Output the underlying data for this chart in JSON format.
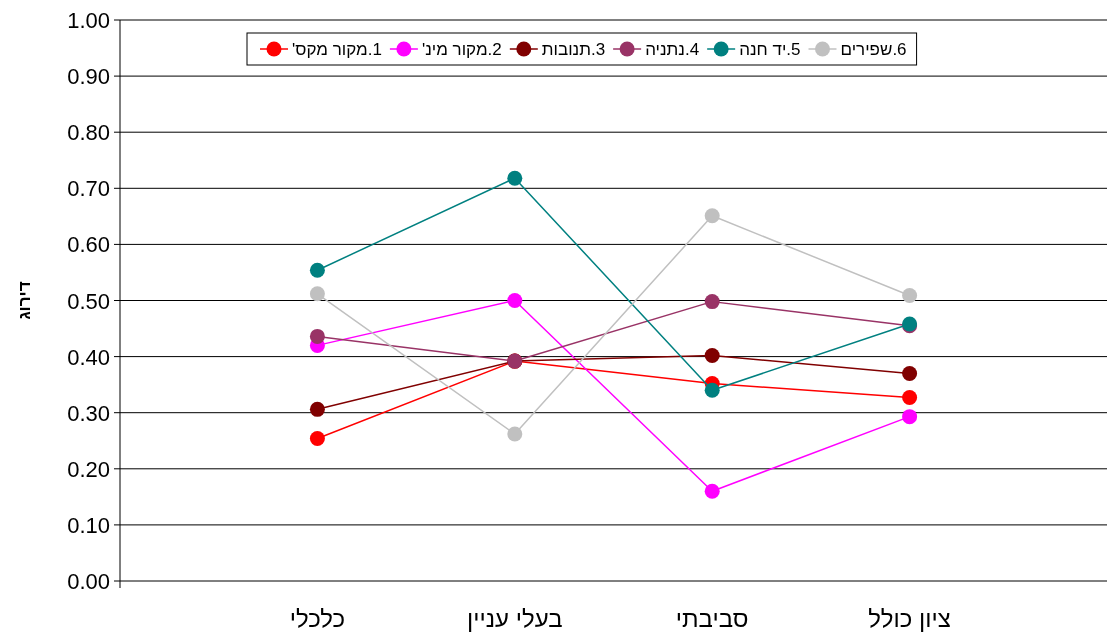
{
  "chart_data": {
    "type": "line",
    "ylabel": "דירוג",
    "categories": [
      "כלכלי",
      "בעלי עניין",
      "סביבתי",
      "ציון כולל"
    ],
    "ylim": [
      0,
      1
    ],
    "yticks": [
      {
        "value": 0,
        "label": "0.00"
      },
      {
        "value": 0.1,
        "label": "0.10"
      },
      {
        "value": 0.2,
        "label": "0.20"
      },
      {
        "value": 0.3,
        "label": "0.30"
      },
      {
        "value": 0.4,
        "label": "0.40"
      },
      {
        "value": 0.5,
        "label": "0.50"
      },
      {
        "value": 0.6,
        "label": "0.60"
      },
      {
        "value": 0.7,
        "label": "0.70"
      },
      {
        "value": 0.8,
        "label": "0.80"
      },
      {
        "value": 0.9,
        "label": "0.90"
      },
      {
        "value": 1,
        "label": "1.00"
      }
    ],
    "grid": "y",
    "legend": "top",
    "marker": "circle",
    "line_style": "solid",
    "series": [
      {
        "name": "1.מקור מקס'",
        "color": "#ff0000",
        "values": [
          0.254,
          0.392,
          0.352,
          0.327
        ]
      },
      {
        "name": "2.מקור מינ'",
        "color": "#ff00ff",
        "values": [
          0.42,
          0.5,
          0.16,
          0.293
        ]
      },
      {
        "name": "3.תנובות",
        "color": "#800000",
        "values": [
          0.306,
          0.392,
          0.402,
          0.37
        ]
      },
      {
        "name": "4.נתניה",
        "color": "#993366",
        "values": [
          0.436,
          0.392,
          0.498,
          0.455
        ]
      },
      {
        "name": "5.יד חנה",
        "color": "#008080",
        "values": [
          0.554,
          0.718,
          0.34,
          0.458
        ]
      },
      {
        "name": "6.שפירים",
        "color": "#c0c0c0",
        "values": [
          0.512,
          0.262,
          0.651,
          0.509
        ]
      }
    ]
  }
}
